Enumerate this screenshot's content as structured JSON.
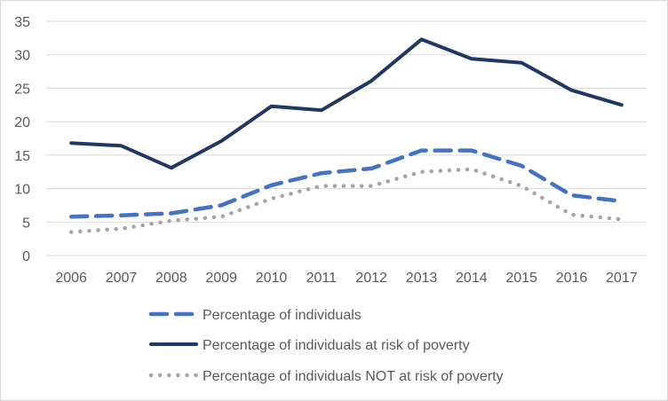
{
  "chart_data": {
    "type": "line",
    "title": "",
    "xlabel": "",
    "ylabel": "",
    "categories": [
      "2006",
      "2007",
      "2008",
      "2009",
      "2010",
      "2011",
      "2012",
      "2013",
      "2014",
      "2015",
      "2016",
      "2017"
    ],
    "ylim": [
      0,
      35
    ],
    "yticks": [
      0,
      5,
      10,
      15,
      20,
      25,
      30,
      35
    ],
    "ytick_labels": [
      "0",
      "5",
      "10",
      "15",
      "20",
      "25",
      "30",
      "35"
    ],
    "grid": true,
    "legend_position": "bottom",
    "series": [
      {
        "name": "Percentage of individuals",
        "style": "dashed",
        "color": "#4472c4",
        "values": [
          5.8,
          6.0,
          6.3,
          7.5,
          10.5,
          12.3,
          13.0,
          15.7,
          15.7,
          13.4,
          9.0,
          8.1
        ]
      },
      {
        "name": "Percentage of individuals at risk of poverty",
        "style": "solid",
        "color": "#203864",
        "values": [
          16.8,
          16.4,
          13.1,
          17.1,
          22.3,
          21.7,
          26.1,
          32.3,
          29.4,
          28.8,
          24.7,
          22.5
        ]
      },
      {
        "name": "Percentage of individuals NOT at risk of poverty",
        "style": "dotted",
        "color": "#a5a5a5",
        "values": [
          3.5,
          4.0,
          5.2,
          5.8,
          8.5,
          10.4,
          10.4,
          12.5,
          12.9,
          10.4,
          6.1,
          5.4
        ]
      }
    ]
  }
}
